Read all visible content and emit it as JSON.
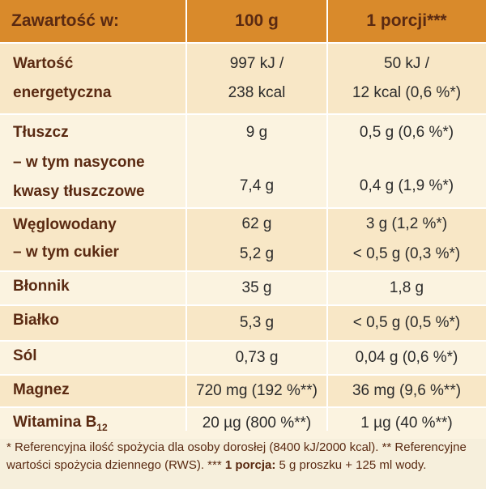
{
  "header": {
    "col1": "Zawartość w:",
    "col2": "100 g",
    "col3": "1 porcji***"
  },
  "rows": [
    {
      "label1": "Wartość",
      "label2": "energetyczna",
      "v100a": "997 kJ /",
      "v100b": "238 kcal",
      "vpa": "50 kJ /",
      "vpb": "12 kcal (0,6 %*)"
    },
    {
      "label1": "Tłuszcz",
      "v100": "9 g",
      "vp": "0,5 g (0,6 %*)"
    },
    {
      "label1": "– w tym nasycone",
      "label2": "kwasy tłuszczowe",
      "v100": "7,4 g",
      "vp": "0,4 g (1,9 %*)"
    },
    {
      "label1": "Węglowodany",
      "v100": "62 g",
      "vp": "3 g (1,2 %*)"
    },
    {
      "label1": "– w tym cukier",
      "v100": "5,2 g",
      "vp": "< 0,5 g (0,3 %*)"
    },
    {
      "label1": "Błonnik",
      "v100": "35 g",
      "vp": "1,8 g"
    },
    {
      "label1": "Białko",
      "v100": "5,3 g",
      "vp": "< 0,5 g (0,5 %*)"
    },
    {
      "label1": "Sól",
      "v100": "0,73 g",
      "vp": "0,04 g (0,6 %*)"
    },
    {
      "label1": "Magnez",
      "v100": "720 mg (192 %**)",
      "vp": "36 mg (9,6 %**)"
    },
    {
      "label1": "Witamina B",
      "label_sub": "12",
      "v100": "20 µg (800 %**)",
      "vp": "1 µg (40 %**)"
    }
  ],
  "footnote": {
    "part1": "* Referencyjna ilość spożycia dla osoby dorosłej (8400 kJ/2000 kcal). ** Referencyjne wartości spożycia dziennego (RWS). *** ",
    "bold": "1 porcja:",
    "part2": " 5 g proszku + 125 ml wody."
  }
}
